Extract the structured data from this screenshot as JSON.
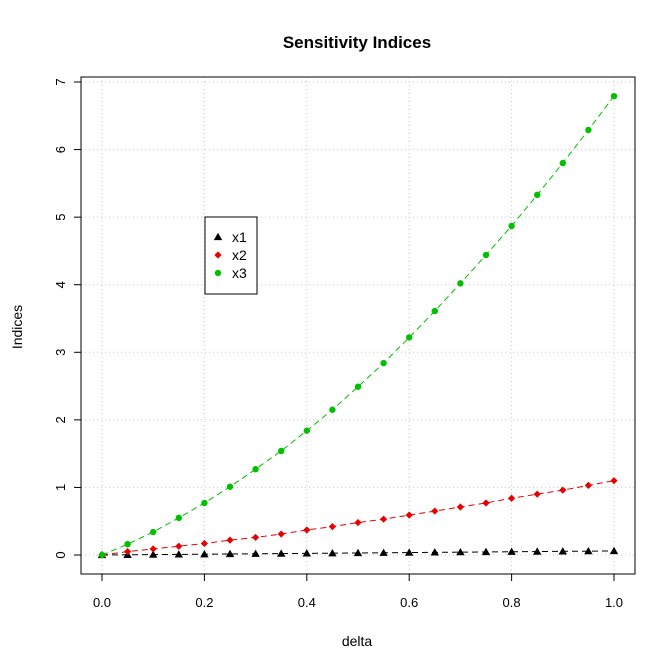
{
  "chart_data": {
    "type": "line",
    "title": "Sensitivity Indices",
    "xlabel": "delta",
    "ylabel": "Indices",
    "xlim": [
      0,
      1
    ],
    "ylim": [
      0,
      7
    ],
    "xticks": [
      "0.0",
      "0.2",
      "0.4",
      "0.6",
      "0.8",
      "1.0"
    ],
    "yticks": [
      "0",
      "1",
      "2",
      "3",
      "4",
      "5",
      "6",
      "7"
    ],
    "grid": true,
    "legend_position": "upper-left inside plot",
    "x": [
      0.0,
      0.05,
      0.1,
      0.15,
      0.2,
      0.25,
      0.3,
      0.35,
      0.4,
      0.45,
      0.5,
      0.55,
      0.6,
      0.65,
      0.7,
      0.75,
      0.8,
      0.85,
      0.9,
      0.95,
      1.0
    ],
    "series": [
      {
        "name": "x1",
        "color": "#000000",
        "marker": "triangle",
        "values": [
          0.0,
          0.003,
          0.006,
          0.009,
          0.012,
          0.015,
          0.018,
          0.021,
          0.024,
          0.027,
          0.03,
          0.033,
          0.036,
          0.039,
          0.042,
          0.045,
          0.048,
          0.051,
          0.054,
          0.057,
          0.06
        ]
      },
      {
        "name": "x2",
        "color": "#e60000",
        "marker": "diamond",
        "values": [
          0.0,
          0.05,
          0.09,
          0.13,
          0.17,
          0.22,
          0.26,
          0.31,
          0.37,
          0.42,
          0.48,
          0.53,
          0.59,
          0.65,
          0.71,
          0.77,
          0.84,
          0.9,
          0.96,
          1.03,
          1.1
        ]
      },
      {
        "name": "x3",
        "color": "#00c000",
        "marker": "circle",
        "values": [
          0.0,
          0.16,
          0.34,
          0.55,
          0.77,
          1.01,
          1.27,
          1.54,
          1.84,
          2.15,
          2.49,
          2.84,
          3.22,
          3.61,
          4.02,
          4.44,
          4.87,
          5.33,
          5.8,
          6.29,
          6.79
        ]
      }
    ]
  }
}
